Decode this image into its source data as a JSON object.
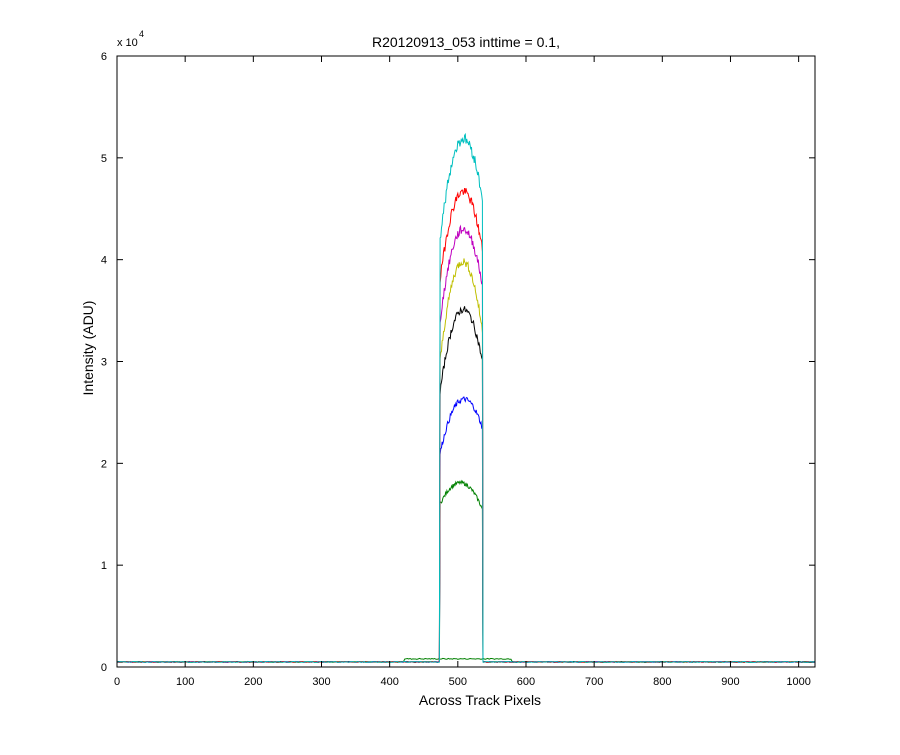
{
  "chart_data": {
    "type": "line",
    "title": "R20120913_053 inttime = 0.1,",
    "xlabel": "Across Track Pixels",
    "ylabel": "Intensity (ADU)",
    "xlim": [
      0,
      1024
    ],
    "ylim": [
      0,
      60000
    ],
    "x_ticks": [
      0,
      100,
      200,
      300,
      400,
      500,
      600,
      700,
      800,
      900,
      1000
    ],
    "y_ticks": [
      0,
      1,
      2,
      3,
      4,
      5,
      6
    ],
    "y_exponent_label": {
      "base": "x 10",
      "exp": "4"
    },
    "grid": false,
    "legend": "none",
    "baseline": 500,
    "plateau_x_range": [
      474,
      536
    ],
    "series": [
      {
        "color": "#008000",
        "edge_values": [
          16000,
          15500
        ],
        "peak": 18000
      },
      {
        "color": "#0000ff",
        "edge_values": [
          21000,
          23500
        ],
        "peak": 26800
      },
      {
        "color": "#000000",
        "edge_values": [
          27000,
          30000
        ],
        "peak": 35500
      },
      {
        "color": "#bfbf00",
        "edge_values": [
          30000,
          33000
        ],
        "peak": 40000
      },
      {
        "color": "#bf00bf",
        "edge_values": [
          34000,
          37500
        ],
        "peak": 43500
      },
      {
        "color": "#ff0000",
        "edge_values": [
          38000,
          41000
        ],
        "peak": 47000
      },
      {
        "color": "#00bfbf",
        "edge_values": [
          42000,
          46000
        ],
        "peak": 52500
      }
    ],
    "low_series": {
      "color": "#008000",
      "value": 800
    }
  }
}
